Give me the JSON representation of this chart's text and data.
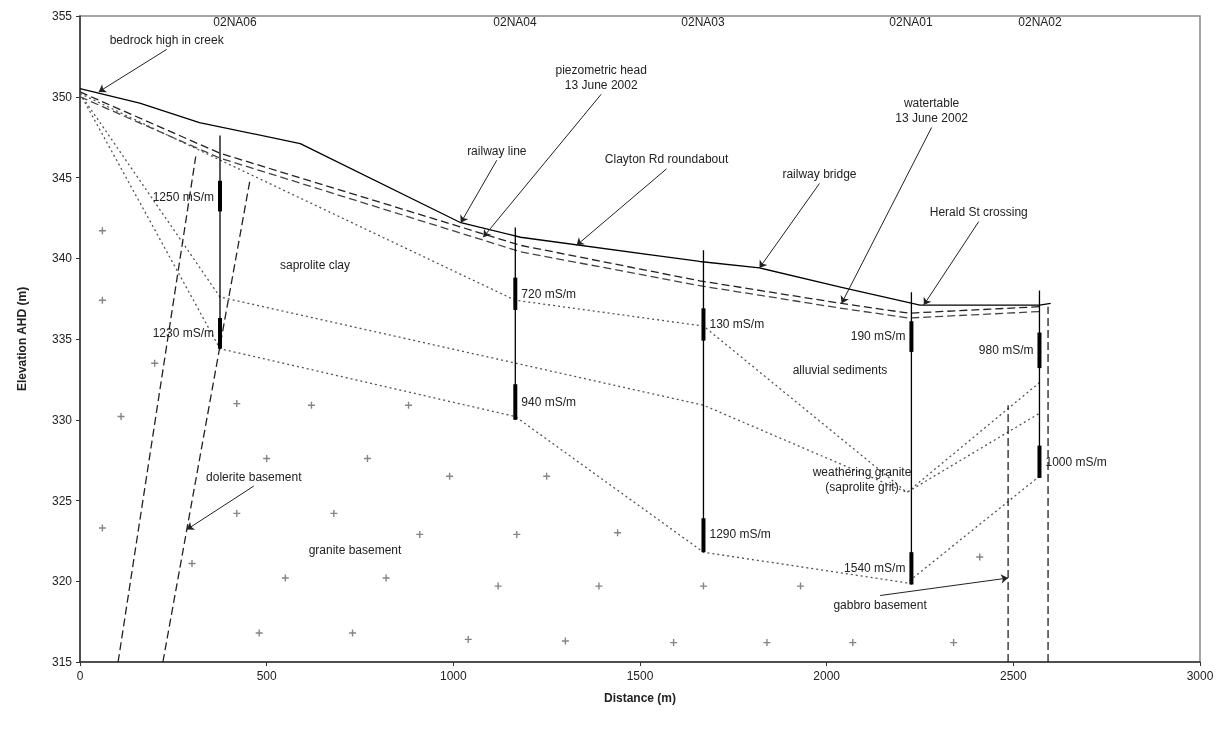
{
  "chart_data": {
    "type": "line",
    "xlabel": "Distance (m)",
    "ylabel": "Elevation AHD (m)",
    "xlim": [
      0,
      3000
    ],
    "xticks": [
      0,
      500,
      1000,
      1500,
      2000,
      2500,
      3000
    ],
    "ylim": [
      315,
      355
    ],
    "yticks": [
      315,
      320,
      325,
      330,
      335,
      340,
      345,
      350,
      355
    ],
    "grid": false,
    "series": [
      {
        "color": "#000000",
        "line_style": "solid",
        "x": [
          0,
          160,
          320,
          590,
          1020,
          1180,
          1660,
          1820,
          2040,
          2250,
          2570,
          2600
        ],
        "values": [
          350.5,
          349.6,
          348.4,
          347.1,
          342.2,
          341.3,
          339.8,
          339.4,
          338.2,
          337.1,
          337.1,
          337.2
        ]
      },
      {
        "color": "#222222",
        "line_style": "dashed",
        "x": [
          0,
          375,
          1180,
          1660,
          2040,
          2220,
          2570
        ],
        "values": [
          350.3,
          346.5,
          340.8,
          338.6,
          337.2,
          336.6,
          337.0
        ]
      },
      {
        "color": "#444444",
        "line_style": "dashed",
        "x": [
          0,
          375,
          1180,
          1660,
          2040,
          2220,
          2570
        ],
        "values": [
          350.0,
          346.2,
          340.4,
          338.3,
          336.9,
          336.3,
          336.7
        ]
      },
      {
        "color": "#555555",
        "line_style": "dotted",
        "x": [
          0,
          1166,
          1670,
          2215,
          2570
        ],
        "values": [
          350.2,
          337.4,
          335.8,
          325.5,
          332.3
        ]
      },
      {
        "color": "#555555",
        "line_style": "dotted",
        "x": [
          0,
          375,
          1670,
          2215,
          2570
        ],
        "values": [
          350.2,
          337.6,
          330.9,
          325.5,
          330.4
        ]
      },
      {
        "color": "#555555",
        "line_style": "dotted",
        "x": [
          0,
          375,
          1166,
          1670,
          2215,
          2570
        ],
        "values": [
          350.2,
          334.4,
          330.2,
          321.8,
          319.9,
          326.5
        ]
      },
      {
        "color": "#222222",
        "line_style": "dashed",
        "x": [
          102,
          310
        ],
        "values": [
          315,
          346.3
        ]
      },
      {
        "color": "#222222",
        "line_style": "dashed",
        "x": [
          222,
          455
        ],
        "values": [
          315,
          344.8
        ]
      },
      {
        "color": "#222222",
        "line_style": "dashed",
        "x": [
          2486,
          2486
        ],
        "values": [
          315,
          330.9
        ]
      },
      {
        "color": "#222222",
        "line_style": "dashed",
        "x": [
          2593,
          2593
        ],
        "values": [
          315,
          337.0
        ]
      },
      {
        "color": "#000000",
        "line_style": "solid",
        "x": [
          375,
          375
        ],
        "values": [
          347.6,
          334.4
        ]
      },
      {
        "color": "#000000",
        "line_style": "solid",
        "x": [
          1166,
          1166
        ],
        "values": [
          341.9,
          330.0
        ]
      },
      {
        "color": "#000000",
        "line_style": "solid",
        "x": [
          1670,
          1670
        ],
        "values": [
          340.5,
          321.8
        ]
      },
      {
        "color": "#000000",
        "line_style": "solid",
        "x": [
          2227,
          2227
        ],
        "values": [
          337.9,
          319.8
        ]
      },
      {
        "color": "#000000",
        "line_style": "solid",
        "x": [
          2570,
          2570
        ],
        "values": [
          338.0,
          326.4
        ]
      },
      {
        "type": "bar",
        "color": "#000000",
        "x": [
          375,
          1166,
          1670,
          2227,
          2570
        ],
        "base": [
          342.9,
          336.8,
          334.9,
          334.2,
          333.2
        ],
        "values": [
          1.9,
          2.0,
          2.0,
          1.9,
          2.2
        ]
      },
      {
        "type": "bar",
        "color": "#000000",
        "x": [
          375,
          1166,
          1670,
          2227,
          2570
        ],
        "base": [
          334.4,
          330.0,
          321.8,
          319.8,
          326.4
        ],
        "values": [
          1.9,
          2.2,
          2.1,
          2.0,
          2.0
        ]
      },
      {
        "type": "scatter",
        "marker": "cross",
        "color": "#666666",
        "x": [
          60,
          60,
          60,
          110,
          200,
          300,
          420,
          420,
          480,
          500,
          550,
          620,
          680,
          730,
          770,
          820,
          880,
          910,
          990,
          1040,
          1120,
          1170,
          1250,
          1300,
          1390,
          1440,
          1590,
          1670,
          1840,
          1930,
          2070,
          2340,
          2410
        ],
        "values": [
          341.7,
          337.4,
          323.3,
          330.2,
          333.5,
          321.1,
          331.0,
          324.2,
          316.8,
          327.6,
          320.2,
          330.9,
          324.2,
          316.8,
          327.6,
          320.2,
          330.9,
          322.9,
          326.5,
          316.4,
          319.7,
          322.9,
          326.5,
          316.3,
          319.7,
          323.0,
          316.2,
          319.7,
          316.2,
          319.7,
          316.2,
          316.2,
          321.5
        ]
      }
    ],
    "annotations": [
      "02NA06",
      "02NA04",
      "02NA03",
      "02NA01",
      "02NA02",
      {
        "text": "bedrock high in creek",
        "x": 50,
        "y": 350.3
      },
      {
        "text": "railway line",
        "x": 1020,
        "y": 342.2
      },
      {
        "text": "piezometric head\n13 June 2002",
        "x": 1080,
        "y": 341.3
      },
      {
        "text": "Clayton Rd roundabout",
        "x": 1330,
        "y": 340.8
      },
      {
        "text": "railway bridge",
        "x": 1820,
        "y": 339.4
      },
      {
        "text": "watertable\n13 June 2002",
        "x": 2040,
        "y": 337.2
      },
      {
        "text": "Herald St crossing",
        "x": 2260,
        "y": 337.1
      },
      {
        "text": "dolerite basement",
        "x": 286,
        "y": 323.2
      },
      {
        "text": "gabbro basement",
        "x": 2486,
        "y": 320.2
      },
      {
        "text": "1250 mS/m",
        "x": 375,
        "y": 343.8
      },
      {
        "text": "1230 mS/m",
        "x": 375,
        "y": 335.4
      },
      {
        "text": "720 mS/m",
        "x": 1166,
        "y": 337.8
      },
      {
        "text": "940 mS/m",
        "x": 1166,
        "y": 331.1
      },
      {
        "text": "130 mS/m",
        "x": 1670,
        "y": 335.9
      },
      {
        "text": "1290 mS/m",
        "x": 1670,
        "y": 322.9
      },
      {
        "text": "190 mS/m",
        "x": 2227,
        "y": 335.2
      },
      {
        "text": "1540 mS/m",
        "x": 2227,
        "y": 320.8
      },
      {
        "text": "980 mS/m",
        "x": 2570,
        "y": 334.3
      },
      {
        "text": "1000 mS/m",
        "x": 2570,
        "y": 327.4
      },
      "saprolite clay",
      "alluvial sediments",
      "weathering granite\n(saprolite grit)",
      "granite basement"
    ]
  }
}
